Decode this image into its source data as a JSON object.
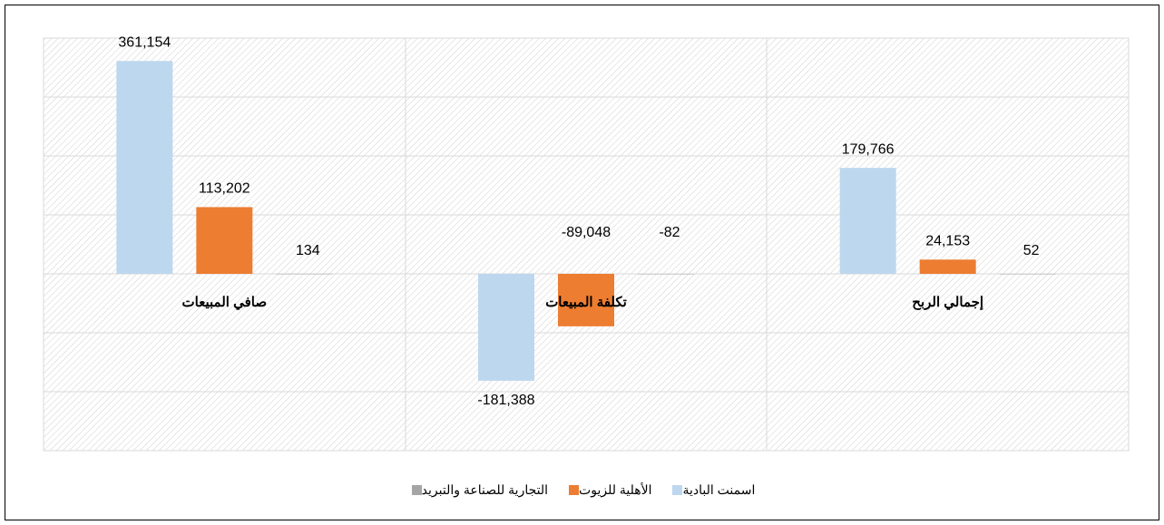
{
  "chart_data": {
    "type": "bar",
    "categories": [
      "صافي المبيعات",
      "تكلفة المبيعات",
      "إجمالي الربح"
    ],
    "series": [
      {
        "name": "اسمنت البادية",
        "color": "#bdd7ee",
        "values": [
          361154,
          -181388,
          179766
        ],
        "value_labels": [
          "361,154",
          "-181,388",
          "179,766"
        ]
      },
      {
        "name": "الأهلية للزيوت",
        "color": "#ed7d31",
        "values": [
          113202,
          -89048,
          24153
        ],
        "value_labels": [
          "113,202",
          "-89,048",
          "24,153"
        ]
      },
      {
        "name": "التجارية للصناعة والتبريد",
        "color": "#a5a5a5",
        "values": [
          134,
          -82,
          52
        ],
        "value_labels": [
          "134",
          "-82",
          "52"
        ]
      }
    ],
    "ylim": [
      -300000,
      400000
    ],
    "yticks": [
      -300000,
      -200000,
      -100000,
      0,
      100000,
      200000,
      300000,
      400000
    ],
    "grid": true,
    "legend": "bottom"
  }
}
